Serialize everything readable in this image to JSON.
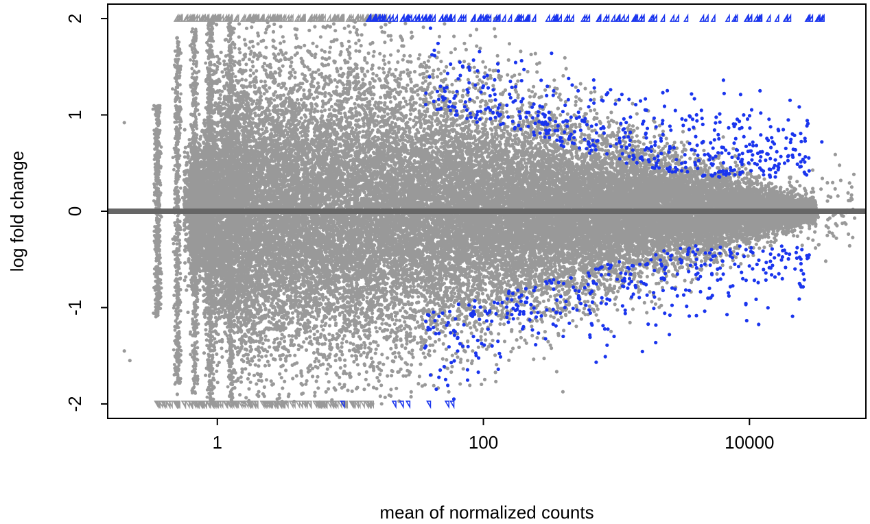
{
  "chart_data": {
    "type": "scatter",
    "title": "",
    "xlabel": "mean of normalized counts",
    "ylabel": "log fold change",
    "x_scale": "log10",
    "xlim": [
      0.15,
      75000
    ],
    "ylim": [
      -2.15,
      2.15
    ],
    "x_ticks": [
      1,
      100,
      10000
    ],
    "x_tick_labels": [
      "1",
      "100",
      "10000"
    ],
    "y_ticks": [
      -2,
      -1,
      0,
      1,
      2
    ],
    "y_tick_labels": [
      "-2",
      "-1",
      "0",
      "1",
      "2"
    ],
    "reference_line_y": 0,
    "grid": false,
    "legend": "none",
    "colors": {
      "not_significant": "#999999",
      "significant": "#1a35ee",
      "reference_line": "#666666",
      "axes": "#000000"
    },
    "series": [
      {
        "role": "not_significant",
        "points_sample": [
          [
            0.2,
            0.92
          ],
          [
            0.2,
            -1.45
          ],
          [
            0.22,
            -1.55
          ],
          [
            0.5,
            1.8
          ],
          [
            0.5,
            -1.9
          ],
          [
            1,
            1.5
          ],
          [
            1,
            -1.6
          ],
          [
            3,
            1.2
          ],
          [
            3,
            -1.2
          ],
          [
            10,
            0.9
          ],
          [
            10,
            -0.9
          ],
          [
            30,
            0.6
          ],
          [
            30,
            -0.7
          ],
          [
            100,
            0.4
          ],
          [
            100,
            -0.4
          ],
          [
            1000,
            0.25
          ],
          [
            1000,
            -0.25
          ],
          [
            10000,
            0.15
          ],
          [
            10000,
            -0.2
          ],
          [
            20000,
            0.3
          ],
          [
            30000,
            -0.3
          ],
          [
            45000,
            -0.28
          ],
          [
            60000,
            0.02
          ]
        ]
      },
      {
        "role": "significant",
        "points_sample": [
          [
            40,
            1.9
          ],
          [
            70,
            1.5
          ],
          [
            100,
            1.3
          ],
          [
            150,
            1.1
          ],
          [
            300,
            0.9
          ],
          [
            600,
            0.9
          ],
          [
            1000,
            0.7
          ],
          [
            2000,
            0.5
          ],
          [
            4000,
            1.0
          ],
          [
            7000,
            0.6
          ],
          [
            12000,
            1.25
          ],
          [
            35000,
            0.72
          ],
          [
            40,
            -1.7
          ],
          [
            70,
            -1.4
          ],
          [
            150,
            -1.1
          ],
          [
            300,
            -0.75
          ],
          [
            700,
            -0.6
          ],
          [
            1500,
            -0.55
          ],
          [
            4000,
            -0.5
          ],
          [
            5000,
            -0.8
          ],
          [
            27000,
            -0.46
          ],
          [
            2500,
            -1.28
          ],
          [
            60,
            -1.95
          ]
        ]
      },
      {
        "role": "clipped_high",
        "marker": "triangle-up",
        "y": 2,
        "x_range_not_significant": [
          0.5,
          20
        ],
        "x_range_significant": [
          14,
          38000
        ]
      },
      {
        "role": "clipped_low",
        "marker": "triangle-down",
        "y": -2,
        "x_range_not_significant": [
          0.35,
          15
        ],
        "x_values_significant": [
          9,
          22,
          25,
          28,
          40,
          55,
          60
        ]
      }
    ]
  }
}
